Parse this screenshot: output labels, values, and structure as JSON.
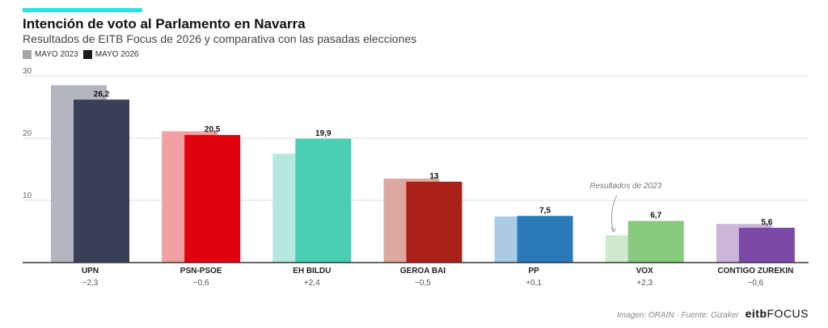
{
  "header": {
    "title": "Intención de voto al Parlamento en Navarra",
    "subtitle": "Resultados de EITB Focus de 2026 y comparativa con las pasadas elecciones"
  },
  "legend": {
    "items": [
      {
        "label": "MAYO 2023",
        "color": "#a6a6a6"
      },
      {
        "label": "MAYO 2026",
        "color": "#1a1a1a"
      }
    ]
  },
  "chart_data": {
    "type": "bar",
    "title": "Intención de voto al Parlamento en Navarra",
    "subtitle": "Resultados de EITB Focus de 2026 y comparativa con las pasadas elecciones",
    "categories": [
      "UPN",
      "PSN-PSOE",
      "EH BILDU",
      "GEROA BAI",
      "PP",
      "VOX",
      "CONTIGO ZUREKIN"
    ],
    "series": [
      {
        "name": "MAYO 2023",
        "values": [
          28.5,
          21.1,
          17.5,
          13.5,
          7.4,
          4.4,
          6.2
        ],
        "colors": [
          "#b3b5bf",
          "#f2a0a3",
          "#b6e8df",
          "#dfa89f",
          "#a9cbe4",
          "#cfe9cc",
          "#cbb5d9"
        ]
      },
      {
        "name": "MAYO 2026",
        "values": [
          26.2,
          20.5,
          19.9,
          13,
          7.5,
          6.7,
          5.6
        ],
        "value_labels": [
          "26,2",
          "20,5",
          "19,9",
          "13",
          "7,5",
          "6,7",
          "5,6"
        ],
        "colors": [
          "#3a3f58",
          "#e0000e",
          "#4bcfb4",
          "#ab2016",
          "#2a7ab8",
          "#87c97d",
          "#7a4aa6"
        ]
      }
    ],
    "changes": [
      "−2,3",
      "−0,6",
      "+2,4",
      "−0,5",
      "+0,1",
      "+2,3",
      "−0,6"
    ],
    "ylim": [
      0,
      30
    ],
    "yticks": [
      10,
      20,
      30
    ],
    "grid": true,
    "legend_position": "top-left",
    "annotation": {
      "text": "Resultados de 2023",
      "category": "VOX"
    }
  },
  "footer": {
    "source": "Imagen: ORAIN · Fuente: Gizaker",
    "logo_bold": "eitb",
    "logo_rest": "FOCUS"
  }
}
